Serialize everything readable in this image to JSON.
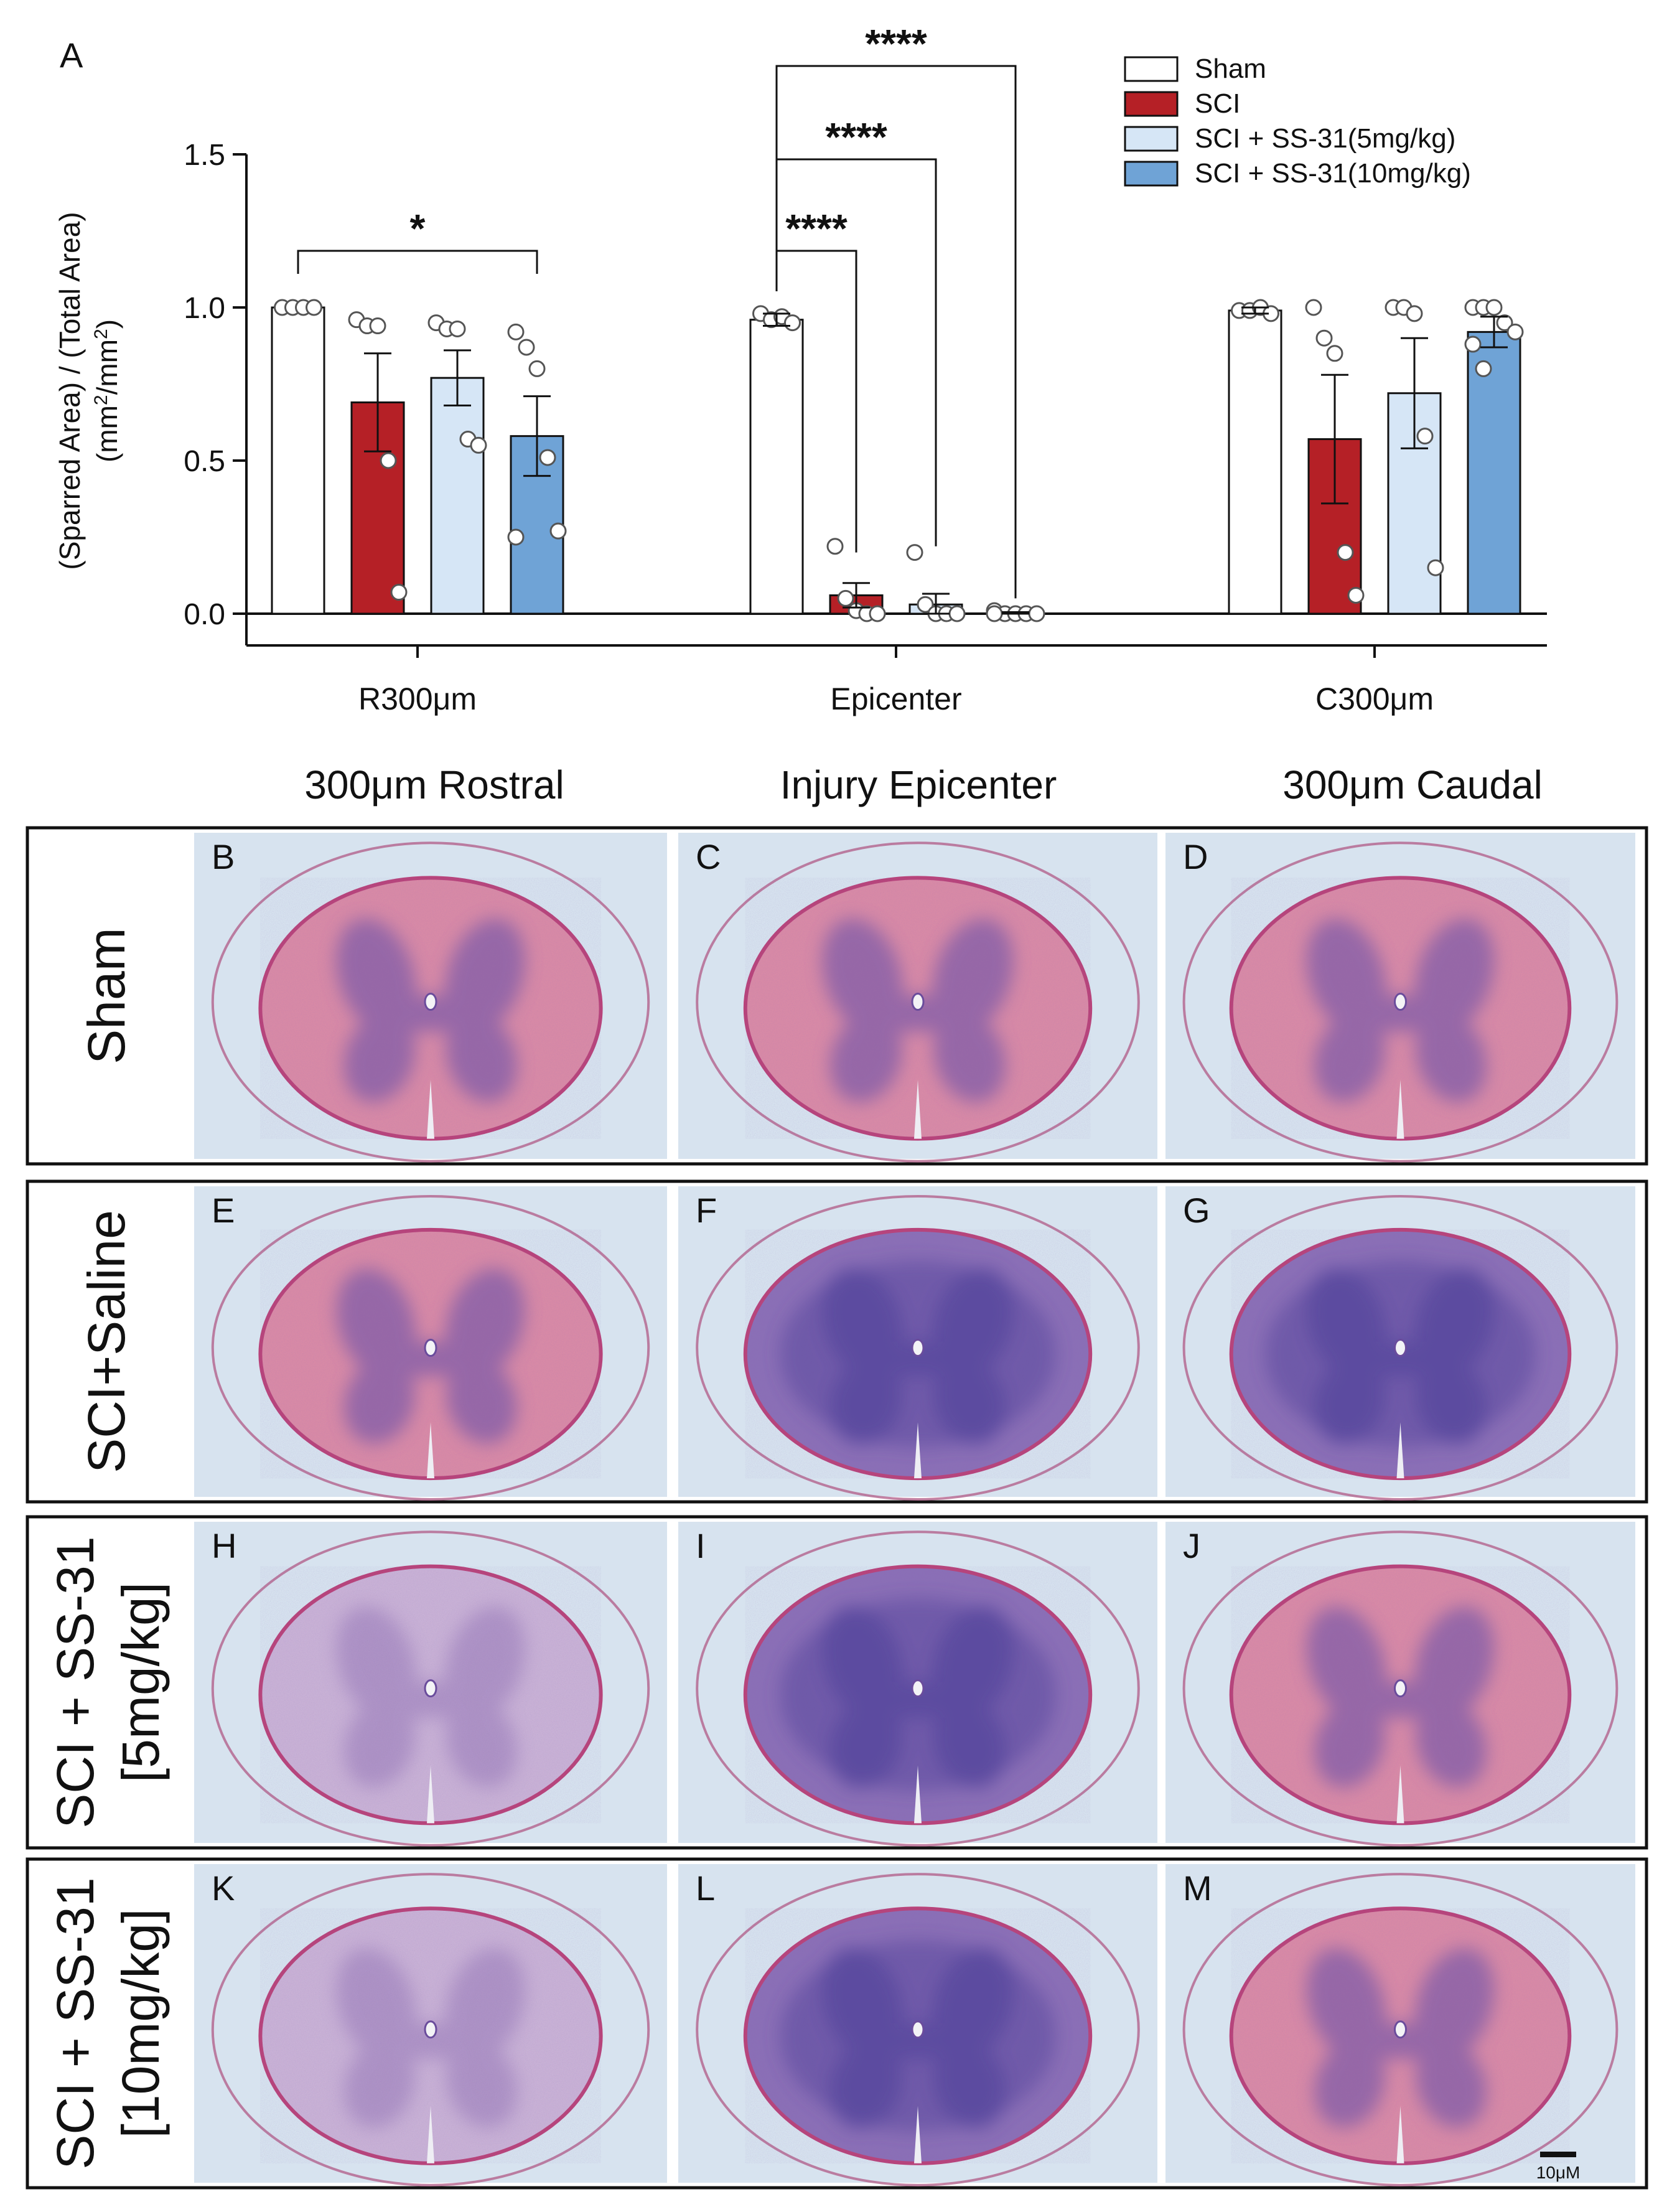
{
  "panel_letter": "A",
  "chart_data": {
    "type": "bar",
    "title": "",
    "ylabel_line1": "(Sparred Area) / (Total Area)",
    "ylabel_line2": "(mm²/mm²)",
    "ylabel_unit_base": "mm",
    "ylabel_unit_exp": "2",
    "xlabel": "",
    "ylim": [
      0,
      1.5
    ],
    "yticks": [
      "0.0",
      "0.5",
      "1.0",
      "1.5"
    ],
    "ytick_values": [
      0,
      0.5,
      1.0,
      1.5
    ],
    "categories": [
      "R300μm",
      "Epicenter",
      "C300μm"
    ],
    "legend_position": "top-right",
    "series": [
      {
        "name": "Sham",
        "color": "#ffffff",
        "values": [
          1.0,
          0.96,
          0.99
        ],
        "sem": [
          0.0,
          0.02,
          0.01
        ],
        "points": [
          [
            1.0,
            1.0,
            1.0,
            1.0
          ],
          [
            0.98,
            0.96,
            0.97,
            0.95
          ],
          [
            0.99,
            0.99,
            1.0,
            0.98
          ]
        ]
      },
      {
        "name": "SCI",
        "color": "#b52026",
        "values": [
          0.69,
          0.06,
          0.57
        ],
        "sem": [
          0.16,
          0.04,
          0.21
        ],
        "points": [
          [
            0.96,
            0.94,
            0.94,
            0.5,
            0.07
          ],
          [
            0.22,
            0.05,
            0.01,
            0.0,
            0.0
          ],
          [
            1.0,
            0.9,
            0.85,
            0.2,
            0.06
          ]
        ]
      },
      {
        "name": "SCI + SS-31(5mg/kg)",
        "color": "#d6e6f6",
        "values": [
          0.77,
          0.03,
          0.72
        ],
        "sem": [
          0.09,
          0.035,
          0.18
        ],
        "points": [
          [
            0.95,
            0.93,
            0.93,
            0.57,
            0.55
          ],
          [
            0.2,
            0.03,
            0.0,
            0.0,
            0.0
          ],
          [
            1.0,
            1.0,
            0.98,
            0.58,
            0.15
          ]
        ]
      },
      {
        "name": "SCI + SS-31(10mg/kg)",
        "color": "#6fa3d6",
        "values": [
          0.58,
          0.0,
          0.92
        ],
        "sem": [
          0.13,
          0.005,
          0.05
        ],
        "points": [
          [
            0.92,
            0.87,
            0.8,
            0.51,
            0.27,
            0.25
          ],
          [
            0.01,
            0.0,
            0.0,
            0.0,
            0.0,
            0.0
          ],
          [
            1.0,
            1.0,
            1.0,
            0.95,
            0.92,
            0.88,
            0.8
          ]
        ]
      }
    ],
    "significance": [
      {
        "label": "*",
        "group": "R300μm",
        "from": "Sham",
        "to": "SCI + SS-31(10mg/kg)"
      },
      {
        "label": "****",
        "group": "Epicenter",
        "from": "Sham",
        "to": "SCI"
      },
      {
        "label": "****",
        "group": "Epicenter",
        "from": "Sham",
        "to": "SCI + SS-31(5mg/kg)"
      },
      {
        "label": "****",
        "group": "Epicenter",
        "from": "Sham",
        "to": "SCI + SS-31(10mg/kg)"
      }
    ]
  },
  "micrographs": {
    "column_headers": [
      "300μm Rostral",
      "Injury Epicenter",
      "300μm Caudal"
    ],
    "row_labels": [
      {
        "line1": "Sham",
        "line2": ""
      },
      {
        "line1": "SCI+Saline",
        "line2": ""
      },
      {
        "line1": "SCI + SS-31",
        "line2": "[5mg/kg]"
      },
      {
        "line1": "SCI + SS-31",
        "line2": "[10mg/kg]"
      }
    ],
    "panel_letters": [
      "B",
      "C",
      "D",
      "E",
      "F",
      "G",
      "H",
      "I",
      "J",
      "K",
      "L",
      "M"
    ],
    "scale_bar_label": "10μM",
    "colors": {
      "background": "#d7e3ef",
      "tissue_pink": "#d98aa6",
      "tissue_pale": "#c9b2d6",
      "gray_matter": "#7c5aa8",
      "gray_matter_dark": "#4f3f9a",
      "meninges": "#b05a86"
    },
    "tissue_state": [
      [
        "healthy",
        "healthy",
        "healthy"
      ],
      [
        "mild",
        "damaged",
        "damaged"
      ],
      [
        "pale",
        "damaged",
        "mild"
      ],
      [
        "pale",
        "damaged",
        "mild"
      ]
    ]
  }
}
